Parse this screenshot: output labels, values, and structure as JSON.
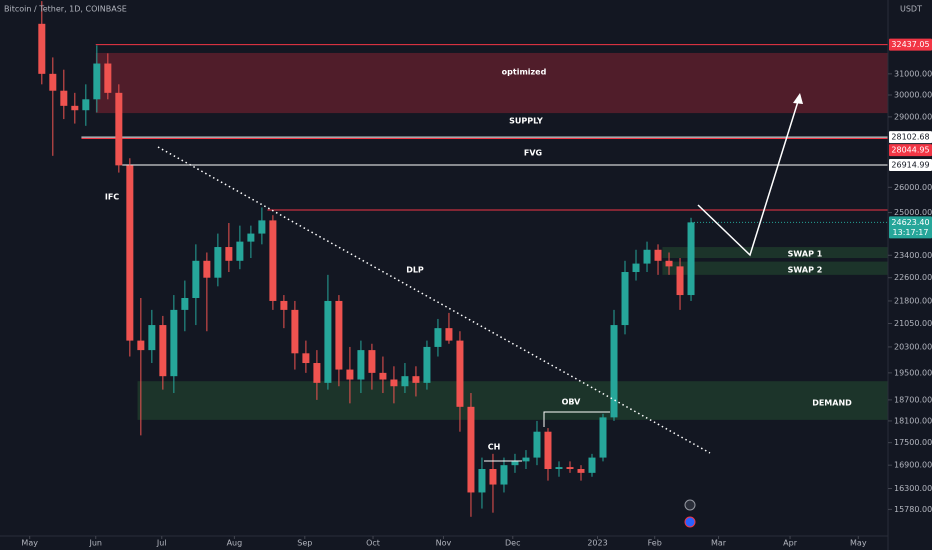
{
  "chart_data": {
    "type": "candlestick",
    "title": "Bitcoin / Tether, 1D, COINBASE",
    "currency": "USDT",
    "log_scale": true,
    "up_color": "#26a69a",
    "down_color": "#ef5350",
    "xlim": [
      -3.8,
      76.9
    ],
    "xticks": [
      {
        "value": -1.1,
        "label": "May"
      },
      {
        "value": 4.9,
        "label": "Jun"
      },
      {
        "value": 10.9,
        "label": "Jul"
      },
      {
        "value": 17.5,
        "label": "Aug"
      },
      {
        "value": 23.9,
        "label": "Sep"
      },
      {
        "value": 30.1,
        "label": "Oct"
      },
      {
        "value": 36.5,
        "label": "Nov"
      },
      {
        "value": 42.8,
        "label": "Dec"
      },
      {
        "value": 50.5,
        "label": "2023"
      },
      {
        "value": 55.7,
        "label": "Feb"
      },
      {
        "value": 61.5,
        "label": "Mar"
      },
      {
        "value": 68,
        "label": "Apr"
      },
      {
        "value": 74.2,
        "label": "May"
      }
    ],
    "ylim": [
      15166,
      34760
    ],
    "yticks": [
      {
        "value": 31000,
        "label": "31000.00"
      },
      {
        "value": 30000,
        "label": "30000.00"
      },
      {
        "value": 29000,
        "label": "29000.00"
      },
      {
        "value": 26000,
        "label": "26000.00"
      },
      {
        "value": 25000,
        "label": "25000.00"
      },
      {
        "value": 23400,
        "label": "23400.00"
      },
      {
        "value": 22600,
        "label": "22600.00"
      },
      {
        "value": 21800,
        "label": "21800.00"
      },
      {
        "value": 21050,
        "label": "21050.00"
      },
      {
        "value": 20300,
        "label": "20300.00"
      },
      {
        "value": 19500,
        "label": "19500.00"
      },
      {
        "value": 18700,
        "label": "18700.00"
      },
      {
        "value": 18100,
        "label": "18100.00"
      },
      {
        "value": 17500,
        "label": "17500.00"
      },
      {
        "value": 16900,
        "label": "16900.00"
      },
      {
        "value": 16300,
        "label": "16300.00"
      },
      {
        "value": 15780,
        "label": "15780.00"
      }
    ],
    "candles": [
      {
        "open": 33500,
        "high": 34700,
        "low": 30500,
        "close": 31000
      },
      {
        "open": 31000,
        "high": 31800,
        "low": 27300,
        "close": 30200
      },
      {
        "open": 30200,
        "high": 31200,
        "low": 28900,
        "close": 29500
      },
      {
        "open": 29500,
        "high": 30100,
        "low": 28700,
        "close": 29300
      },
      {
        "open": 29300,
        "high": 30500,
        "low": 28600,
        "close": 29800
      },
      {
        "open": 29800,
        "high": 32400,
        "low": 29200,
        "close": 31500
      },
      {
        "open": 31500,
        "high": 32000,
        "low": 29800,
        "close": 30100
      },
      {
        "open": 30100,
        "high": 30500,
        "low": 26600,
        "close": 26900
      },
      {
        "open": 26900,
        "high": 27200,
        "low": 20000,
        "close": 20500
      },
      {
        "open": 20500,
        "high": 21900,
        "low": 17700,
        "close": 20200
      },
      {
        "open": 20200,
        "high": 21500,
        "low": 19800,
        "close": 21000
      },
      {
        "open": 21000,
        "high": 21300,
        "low": 19000,
        "close": 19400
      },
      {
        "open": 19400,
        "high": 22000,
        "low": 18900,
        "close": 21500
      },
      {
        "open": 21500,
        "high": 22500,
        "low": 20800,
        "close": 21900
      },
      {
        "open": 21900,
        "high": 23800,
        "low": 21000,
        "close": 23200
      },
      {
        "open": 23200,
        "high": 23500,
        "low": 20800,
        "close": 22600
      },
      {
        "open": 22600,
        "high": 24200,
        "low": 22300,
        "close": 23700
      },
      {
        "open": 23700,
        "high": 24600,
        "low": 22800,
        "close": 23200
      },
      {
        "open": 23200,
        "high": 24500,
        "low": 22900,
        "close": 23900
      },
      {
        "open": 23900,
        "high": 24500,
        "low": 23300,
        "close": 24200
      },
      {
        "open": 24200,
        "high": 25200,
        "low": 23800,
        "close": 24700
      },
      {
        "open": 24700,
        "high": 24900,
        "low": 21500,
        "close": 21800
      },
      {
        "open": 21800,
        "high": 22000,
        "low": 20900,
        "close": 21500
      },
      {
        "open": 21500,
        "high": 21800,
        "low": 19600,
        "close": 20100
      },
      {
        "open": 20100,
        "high": 20500,
        "low": 19500,
        "close": 19800
      },
      {
        "open": 19800,
        "high": 20200,
        "low": 18700,
        "close": 19200
      },
      {
        "open": 19200,
        "high": 22700,
        "low": 19000,
        "close": 21800
      },
      {
        "open": 21800,
        "high": 22000,
        "low": 19100,
        "close": 19600
      },
      {
        "open": 19600,
        "high": 20300,
        "low": 18600,
        "close": 19300
      },
      {
        "open": 19300,
        "high": 20500,
        "low": 18900,
        "close": 20200
      },
      {
        "open": 20200,
        "high": 20400,
        "low": 19000,
        "close": 19500
      },
      {
        "open": 19500,
        "high": 20000,
        "low": 18900,
        "close": 19300
      },
      {
        "open": 19300,
        "high": 19700,
        "low": 18600,
        "close": 19100
      },
      {
        "open": 19100,
        "high": 19800,
        "low": 18900,
        "close": 19400
      },
      {
        "open": 19400,
        "high": 19700,
        "low": 18800,
        "close": 19200
      },
      {
        "open": 19200,
        "high": 20500,
        "low": 19000,
        "close": 20300
      },
      {
        "open": 20300,
        "high": 21200,
        "low": 20000,
        "close": 20900
      },
      {
        "open": 20900,
        "high": 21400,
        "low": 20400,
        "close": 20500
      },
      {
        "open": 20500,
        "high": 20800,
        "low": 17800,
        "close": 18500
      },
      {
        "open": 18500,
        "high": 18900,
        "low": 15600,
        "close": 16200
      },
      {
        "open": 16200,
        "high": 17100,
        "low": 15800,
        "close": 16800
      },
      {
        "open": 16800,
        "high": 17200,
        "low": 15700,
        "close": 16400
      },
      {
        "open": 16400,
        "high": 17100,
        "low": 16200,
        "close": 16900
      },
      {
        "open": 16900,
        "high": 17200,
        "low": 16700,
        "close": 17000
      },
      {
        "open": 17000,
        "high": 17300,
        "low": 16800,
        "close": 17100
      },
      {
        "open": 17100,
        "high": 18100,
        "low": 16900,
        "close": 17800
      },
      {
        "open": 17800,
        "high": 17900,
        "low": 16500,
        "close": 16800
      },
      {
        "open": 16800,
        "high": 17000,
        "low": 16600,
        "close": 16850
      },
      {
        "open": 16850,
        "high": 17000,
        "low": 16700,
        "close": 16800
      },
      {
        "open": 16800,
        "high": 16900,
        "low": 16500,
        "close": 16700
      },
      {
        "open": 16700,
        "high": 17200,
        "low": 16600,
        "close": 17100
      },
      {
        "open": 17100,
        "high": 18300,
        "low": 17000,
        "close": 18200
      },
      {
        "open": 18200,
        "high": 21500,
        "low": 18100,
        "close": 21000
      },
      {
        "open": 21000,
        "high": 23200,
        "low": 20700,
        "close": 22800
      },
      {
        "open": 22800,
        "high": 23600,
        "low": 22500,
        "close": 23100
      },
      {
        "open": 23100,
        "high": 23900,
        "low": 22800,
        "close": 23600
      },
      {
        "open": 23600,
        "high": 23800,
        "low": 22700,
        "close": 23200
      },
      {
        "open": 23200,
        "high": 23500,
        "low": 22700,
        "close": 23000
      },
      {
        "open": 23000,
        "high": 23300,
        "low": 21500,
        "close": 22000
      },
      {
        "open": 22000,
        "high": 24800,
        "low": 21800,
        "close": 24623.4
      }
    ],
    "zones": [
      {
        "x0": 4.9,
        "top": 32020,
        "bottom": 29170,
        "color": "#5c1f2b"
      },
      {
        "x0": 8.7,
        "top": 19250,
        "bottom": 18130,
        "color": "#1e3a2c"
      },
      {
        "x0": 56.4,
        "top": 23700,
        "bottom": 23300,
        "color": "#1e3a2c"
      },
      {
        "x0": 56.4,
        "top": 23170,
        "bottom": 22700,
        "color": "#1e3a2c"
      }
    ],
    "levels": [
      {
        "value": 32437.05,
        "x0": 4.9,
        "color": "#f23645",
        "tag": true
      },
      {
        "value": 28102.68,
        "x0": 3.6,
        "color": "#ffffff",
        "tag": true
      },
      {
        "value": 28044.95,
        "x0": 3.6,
        "color": "#f23645",
        "tag": true
      },
      {
        "value": 26914.99,
        "x0": 7.3,
        "color": "#ffffff",
        "tag": true
      },
      {
        "value": 25100,
        "x0": 20.5,
        "color": "#f23645",
        "tag": false
      }
    ],
    "last_price": {
      "value": 24623.4,
      "label": "24623.40",
      "countdown": "13:17:17",
      "color": "#26a69a"
    },
    "annotations": [
      "optimized",
      "SUPPLY",
      "FVG",
      "IFC",
      "DLP",
      "OBV",
      "CH",
      "DEMAND",
      "SWAP 1",
      "SWAP 2"
    ]
  }
}
